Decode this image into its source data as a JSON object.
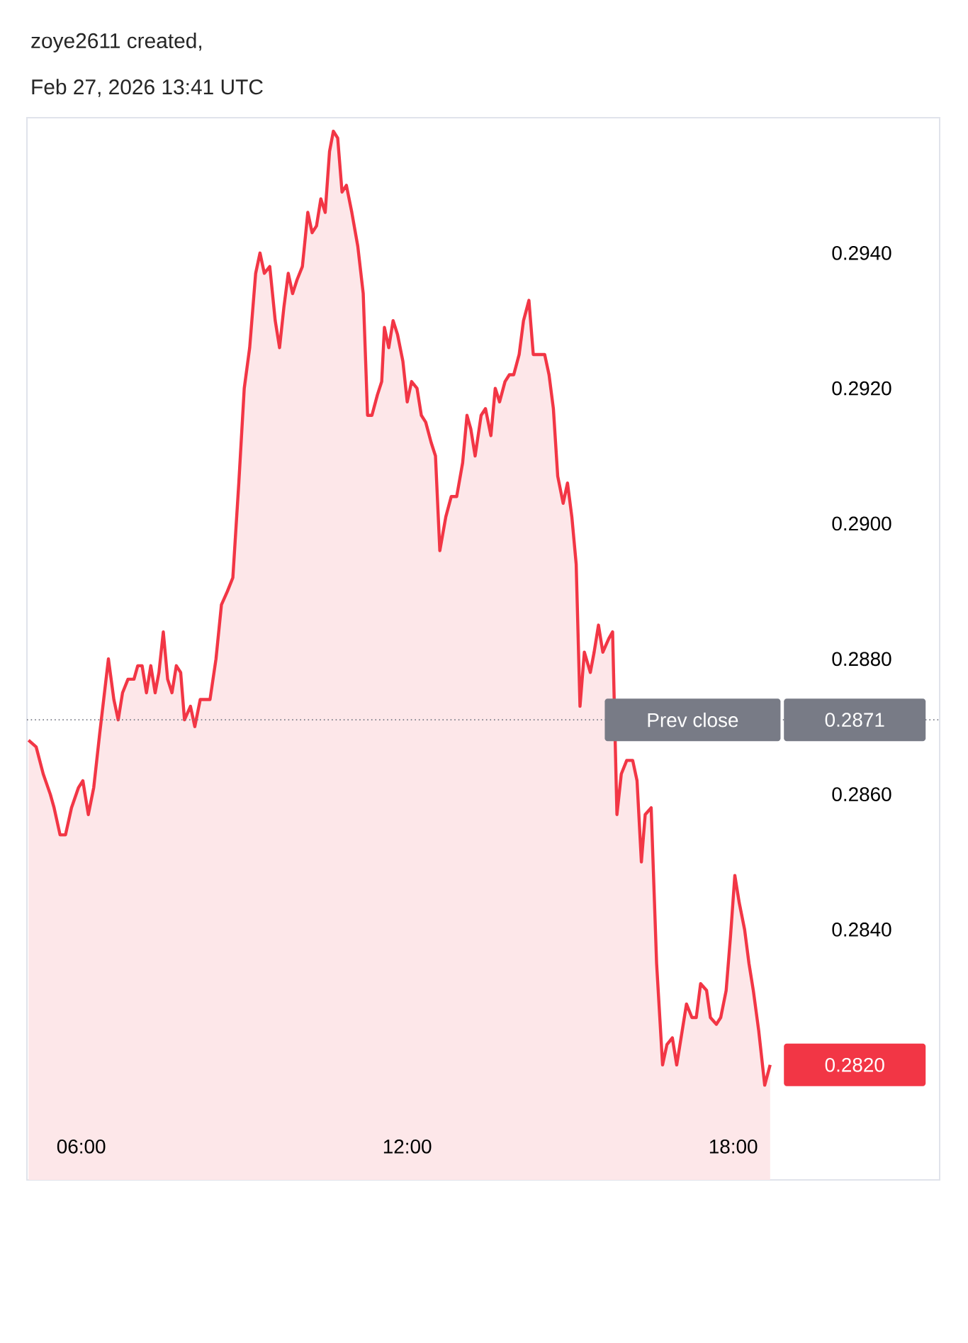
{
  "chart_data": {
    "type": "area",
    "title": "zoye2611 created,",
    "subtitle": "Feb 27, 2026 13:41 UTC",
    "x": [
      5.03,
      5.17,
      5.3,
      5.43,
      5.5,
      5.61,
      5.71,
      5.82,
      5.95,
      6.03,
      6.13,
      6.23,
      6.34,
      6.5,
      6.6,
      6.68,
      6.76,
      6.86,
      6.97,
      7.04,
      7.12,
      7.2,
      7.28,
      7.36,
      7.43,
      7.51,
      7.59,
      7.67,
      7.75,
      7.83,
      7.9,
      8.01,
      8.09,
      8.19,
      8.37,
      8.48,
      8.58,
      8.69,
      8.79,
      8.9,
      9.0,
      9.1,
      9.21,
      9.29,
      9.37,
      9.47,
      9.57,
      9.65,
      9.73,
      9.81,
      9.89,
      9.97,
      10.07,
      10.17,
      10.25,
      10.33,
      10.41,
      10.49,
      10.57,
      10.64,
      10.72,
      10.8,
      10.88,
      10.98,
      11.09,
      11.19,
      11.27,
      11.35,
      11.45,
      11.53,
      11.58,
      11.66,
      11.74,
      11.82,
      11.92,
      12.0,
      12.08,
      12.18,
      12.26,
      12.34,
      12.44,
      12.52,
      12.6,
      12.71,
      12.81,
      12.91,
      13.02,
      13.1,
      13.17,
      13.25,
      13.36,
      13.44,
      13.54,
      13.62,
      13.7,
      13.8,
      13.88,
      13.96,
      14.06,
      14.14,
      14.24,
      14.32,
      14.53,
      14.61,
      14.69,
      14.77,
      14.87,
      14.95,
      15.03,
      15.11,
      15.18,
      15.26,
      15.37,
      15.44,
      15.52,
      15.6,
      15.71,
      15.78,
      15.86,
      15.94,
      16.04,
      16.15,
      16.23,
      16.31,
      16.38,
      16.49,
      16.59,
      16.7,
      16.78,
      16.88,
      16.96,
      17.06,
      17.14,
      17.24,
      17.32,
      17.4,
      17.51,
      17.58,
      17.69,
      17.77,
      17.87,
      17.95,
      18.03,
      18.11,
      18.21,
      18.29,
      18.37,
      18.47,
      18.58,
      18.68
    ],
    "series": [
      {
        "color": "#f23645",
        "values": [
          0.2868,
          0.2867,
          0.2863,
          0.286,
          0.2858,
          0.2854,
          0.2854,
          0.2858,
          0.2861,
          0.2862,
          0.2857,
          0.2861,
          0.2869,
          0.288,
          0.2874,
          0.2871,
          0.2875,
          0.2877,
          0.2877,
          0.2879,
          0.2879,
          0.2875,
          0.2879,
          0.2875,
          0.2878,
          0.2884,
          0.2877,
          0.2875,
          0.2879,
          0.2878,
          0.2871,
          0.2873,
          0.287,
          0.2874,
          0.2874,
          0.288,
          0.2888,
          0.289,
          0.2892,
          0.2906,
          0.292,
          0.2926,
          0.2937,
          0.294,
          0.2937,
          0.2938,
          0.293,
          0.2926,
          0.2932,
          0.2937,
          0.2934,
          0.2936,
          0.2938,
          0.2946,
          0.2943,
          0.2944,
          0.2948,
          0.2946,
          0.2955,
          0.2958,
          0.2957,
          0.2949,
          0.295,
          0.2946,
          0.2941,
          0.2934,
          0.2916,
          0.2916,
          0.2919,
          0.2921,
          0.2929,
          0.2926,
          0.293,
          0.2928,
          0.2924,
          0.2918,
          0.2921,
          0.292,
          0.2916,
          0.2915,
          0.2912,
          0.291,
          0.2896,
          0.2901,
          0.2904,
          0.2904,
          0.2909,
          0.2916,
          0.2914,
          0.291,
          0.2916,
          0.2917,
          0.2913,
          0.292,
          0.2918,
          0.2921,
          0.2922,
          0.2922,
          0.2925,
          0.293,
          0.2933,
          0.2925,
          0.2925,
          0.2922,
          0.2917,
          0.2907,
          0.2903,
          0.2906,
          0.2901,
          0.2894,
          0.2873,
          0.2881,
          0.2878,
          0.2881,
          0.2885,
          0.2881,
          0.2883,
          0.2884,
          0.2857,
          0.2863,
          0.2865,
          0.2865,
          0.2862,
          0.285,
          0.2857,
          0.2858,
          0.2835,
          0.282,
          0.2823,
          0.2824,
          0.282,
          0.2825,
          0.2829,
          0.2827,
          0.2827,
          0.2832,
          0.2831,
          0.2827,
          0.2826,
          0.2827,
          0.2831,
          0.2839,
          0.2848,
          0.2844,
          0.284,
          0.2835,
          0.2831,
          0.2825,
          0.2817,
          0.282
        ]
      }
    ],
    "xlim": [
      5.0,
      21.8
    ],
    "ylim": [
      0.2803,
      0.296
    ],
    "xticks": [
      {
        "value": 6,
        "label": "06:00"
      },
      {
        "value": 12,
        "label": "12:00"
      },
      {
        "value": 18,
        "label": "18:00"
      }
    ],
    "yticks": [
      {
        "value": 0.284,
        "label": "0.2840"
      },
      {
        "value": 0.286,
        "label": "0.2860"
      },
      {
        "value": 0.288,
        "label": "0.2880"
      },
      {
        "value": 0.29,
        "label": "0.2900"
      },
      {
        "value": 0.292,
        "label": "0.2920"
      },
      {
        "value": 0.294,
        "label": "0.2940"
      }
    ],
    "ref_lines": [
      {
        "axis": "y",
        "value": 0.2871,
        "label": "Prev close",
        "color": "#787b86",
        "line_style": "dotted"
      }
    ],
    "annotations": [
      {
        "text": "0.2871",
        "y": 0.2871
      },
      "0.2820"
    ]
  }
}
